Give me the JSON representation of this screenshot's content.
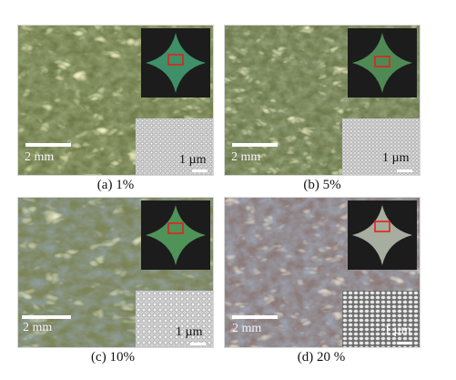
{
  "panels": [
    {
      "id": "a",
      "caption": "(a) 1%",
      "scale_main": "2 mm",
      "scale_inset": "1 µm",
      "colors": {
        "base": "#6f7b4a",
        "bright": "#d9d78a",
        "dark": "#3e4b40",
        "inset_shape": "#3f8f68"
      }
    },
    {
      "id": "b",
      "caption": "(b) 5%",
      "scale_main": "2 mm",
      "scale_inset": "1 µm",
      "colors": {
        "base": "#6d7a4b",
        "bright": "#d6d48a",
        "dark": "#3c4a3e",
        "inset_shape": "#4f8a55"
      }
    },
    {
      "id": "c",
      "caption": "(c) 10%",
      "scale_main": "2 mm",
      "scale_inset": "1 µm",
      "colors": {
        "base": "#7c8457",
        "bright": "#dfe09a",
        "dark": "#4a5c6b",
        "inset_shape": "#4f9358"
      }
    },
    {
      "id": "d",
      "caption": "(d) 20 %",
      "scale_main": "2 mm",
      "scale_inset": "1 µm",
      "colors": {
        "base": "#8c7b78",
        "bright": "#d9c7a6",
        "dark": "#5c6f86",
        "inset_shape": "#a7ad9f"
      }
    }
  ]
}
